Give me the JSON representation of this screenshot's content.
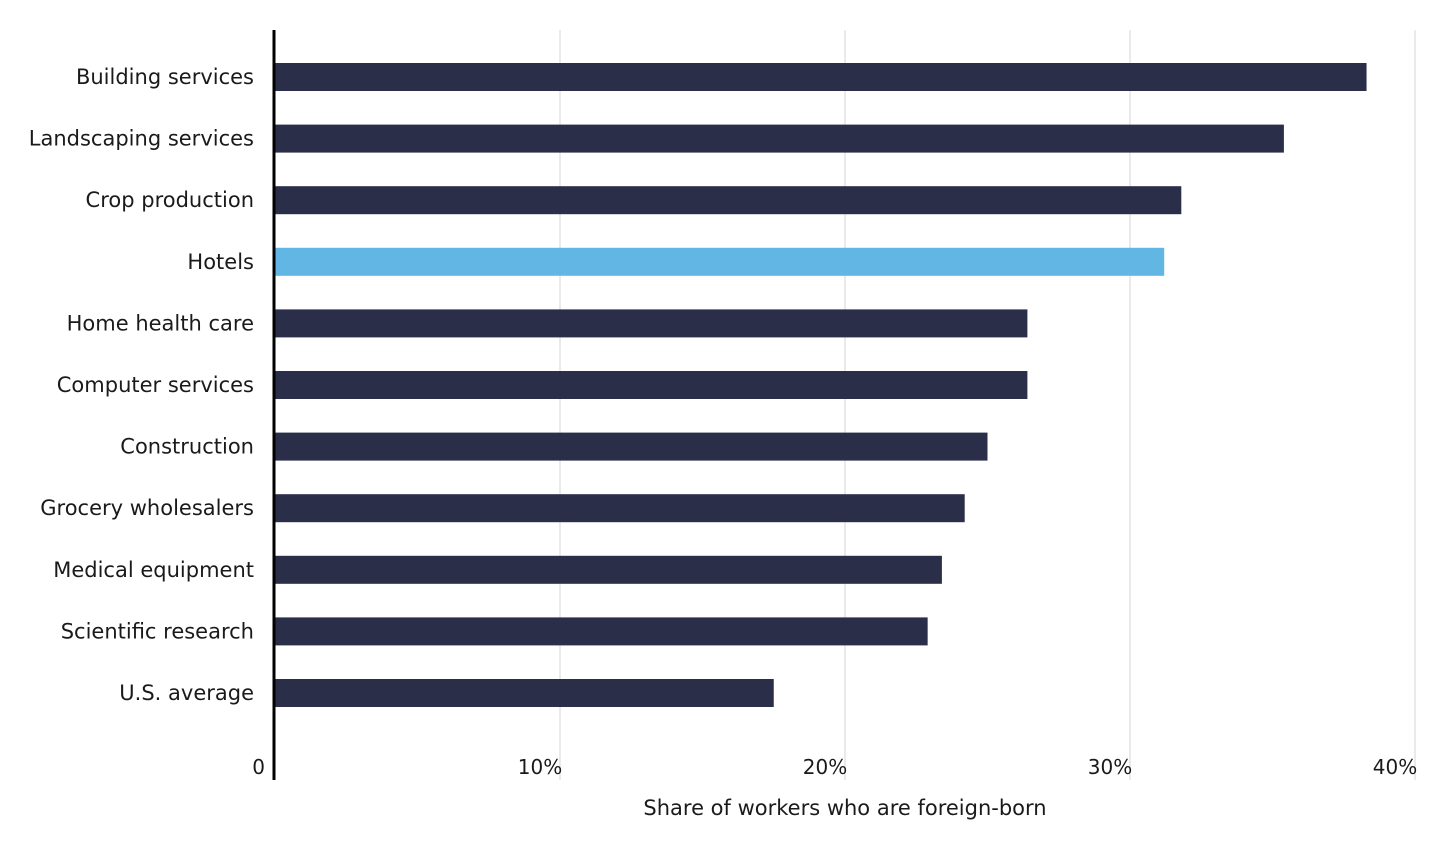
{
  "chart_data": {
    "type": "bar",
    "orientation": "horizontal",
    "categories": [
      "Building services",
      "Landscaping services",
      "Crop production",
      "Hotels",
      "Home health care",
      "Computer services",
      "Construction",
      "Grocery wholesalers",
      "Medical equipment",
      "Scientific research",
      "U.S. average"
    ],
    "values": [
      38.3,
      35.4,
      31.8,
      31.2,
      26.4,
      26.4,
      25.0,
      24.2,
      23.4,
      22.9,
      17.5
    ],
    "highlight": "Hotels",
    "colors": {
      "bar": "#2a2e48",
      "highlight": "#62b6e3",
      "grid": "#dddddd",
      "axis": "#000000"
    },
    "xlabel": "Share of workers who are foreign-born",
    "ylabel": "",
    "xlim": [
      0,
      40
    ],
    "xticks": [
      0,
      10,
      20,
      30,
      40
    ],
    "xtick_labels": [
      "0",
      "10%",
      "20%",
      "30%",
      "40%"
    ],
    "grid": true
  }
}
